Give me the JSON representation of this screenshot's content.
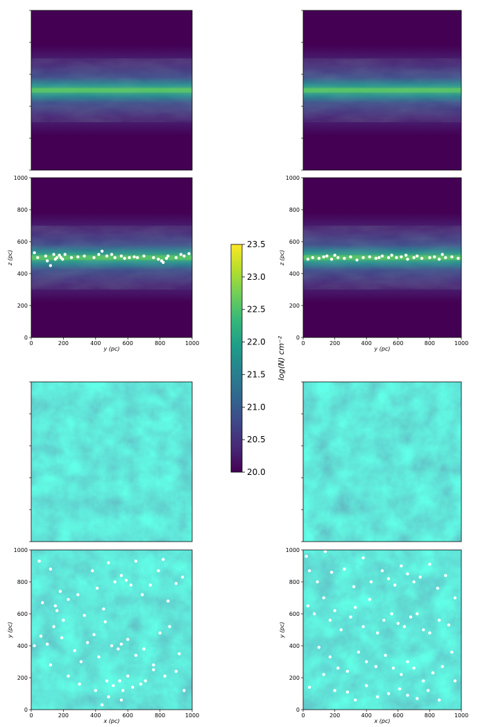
{
  "chart_data": [
    {
      "id": "p1",
      "type": "heatmap",
      "view": "edge-on",
      "xlabel": "",
      "ylabel": "",
      "xlim": [
        0,
        1000
      ],
      "ylim": [
        0,
        1000
      ],
      "xticks": [],
      "yticks": [],
      "points": []
    },
    {
      "id": "p2",
      "type": "heatmap",
      "view": "edge-on",
      "xlabel": "",
      "ylabel": "",
      "xlim": [
        0,
        1000
      ],
      "ylim": [
        0,
        1000
      ],
      "xticks": [],
      "yticks": [],
      "points": []
    },
    {
      "id": "p3",
      "type": "heatmap",
      "view": "edge-on",
      "xlabel": "y (pc)",
      "ylabel": "z (pc)",
      "xlim": [
        0,
        1000
      ],
      "ylim": [
        0,
        1000
      ],
      "xticks": [
        "0",
        "200",
        "400",
        "600",
        "800",
        "1000"
      ],
      "yticks": [
        "0",
        "200",
        "400",
        "600",
        "800",
        "1000"
      ],
      "points": [
        [
          20,
          530
        ],
        [
          40,
          500
        ],
        [
          90,
          510
        ],
        [
          100,
          480
        ],
        [
          120,
          450
        ],
        [
          140,
          520
        ],
        [
          150,
          490
        ],
        [
          160,
          500
        ],
        [
          175,
          515
        ],
        [
          185,
          500
        ],
        [
          195,
          490
        ],
        [
          210,
          520
        ],
        [
          250,
          500
        ],
        [
          290,
          505
        ],
        [
          330,
          510
        ],
        [
          390,
          500
        ],
        [
          420,
          520
        ],
        [
          440,
          540
        ],
        [
          470,
          510
        ],
        [
          500,
          520
        ],
        [
          520,
          500
        ],
        [
          560,
          510
        ],
        [
          580,
          495
        ],
        [
          610,
          500
        ],
        [
          640,
          505
        ],
        [
          660,
          500
        ],
        [
          700,
          510
        ],
        [
          760,
          500
        ],
        [
          790,
          490
        ],
        [
          810,
          480
        ],
        [
          820,
          470
        ],
        [
          840,
          495
        ],
        [
          850,
          510
        ],
        [
          900,
          500
        ],
        [
          930,
          520
        ],
        [
          950,
          510
        ],
        [
          980,
          525
        ]
      ]
    },
    {
      "id": "p4",
      "type": "heatmap",
      "view": "edge-on",
      "xlabel": "y (pc)",
      "ylabel": "z (pc)",
      "xlim": [
        0,
        1000
      ],
      "ylim": [
        0,
        1000
      ],
      "xticks": [
        "0",
        "200",
        "400",
        "600",
        "800",
        "1000"
      ],
      "yticks": [
        "0",
        "200",
        "400",
        "600",
        "800",
        "1000"
      ],
      "points": [
        [
          30,
          490
        ],
        [
          60,
          500
        ],
        [
          100,
          495
        ],
        [
          130,
          505
        ],
        [
          150,
          510
        ],
        [
          180,
          490
        ],
        [
          220,
          500
        ],
        [
          260,
          495
        ],
        [
          300,
          505
        ],
        [
          340,
          485
        ],
        [
          380,
          500
        ],
        [
          420,
          505
        ],
        [
          460,
          495
        ],
        [
          500,
          510
        ],
        [
          540,
          500
        ],
        [
          560,
          515
        ],
        [
          590,
          500
        ],
        [
          620,
          505
        ],
        [
          660,
          490
        ],
        [
          700,
          500
        ],
        [
          720,
          510
        ],
        [
          750,
          495
        ],
        [
          800,
          500
        ],
        [
          830,
          505
        ],
        [
          860,
          490
        ],
        [
          900,
          500
        ],
        [
          940,
          505
        ],
        [
          980,
          495
        ],
        [
          200,
          515
        ],
        [
          480,
          500
        ],
        [
          650,
          515
        ],
        [
          880,
          520
        ]
      ]
    },
    {
      "id": "p5",
      "type": "heatmap",
      "view": "face-on",
      "xlabel": "",
      "ylabel": "",
      "xlim": [
        0,
        1000
      ],
      "ylim": [
        0,
        1000
      ],
      "xticks": [],
      "yticks": [],
      "points": []
    },
    {
      "id": "p6",
      "type": "heatmap",
      "view": "face-on",
      "xlabel": "",
      "ylabel": "",
      "xlim": [
        0,
        1000
      ],
      "ylim": [
        0,
        1000
      ],
      "xticks": [],
      "yticks": [],
      "points": []
    },
    {
      "id": "p7",
      "type": "heatmap",
      "view": "face-on",
      "xlabel": "x (pc)",
      "ylabel": "y (pc)",
      "xlim": [
        0,
        1000
      ],
      "ylim": [
        0,
        1000
      ],
      "xticks": [
        "0",
        "200",
        "400",
        "600",
        "800",
        "1000"
      ],
      "yticks": [
        "0",
        "200",
        "400",
        "600",
        "800",
        "1000"
      ],
      "points": [
        [
          50,
          930
        ],
        [
          70,
          670
        ],
        [
          120,
          880
        ],
        [
          150,
          650
        ],
        [
          160,
          620
        ],
        [
          180,
          740
        ],
        [
          200,
          560
        ],
        [
          230,
          690
        ],
        [
          290,
          720
        ],
        [
          330,
          590
        ],
        [
          380,
          870
        ],
        [
          410,
          760
        ],
        [
          450,
          630
        ],
        [
          480,
          920
        ],
        [
          520,
          800
        ],
        [
          560,
          840
        ],
        [
          590,
          810
        ],
        [
          620,
          780
        ],
        [
          650,
          930
        ],
        [
          690,
          720
        ],
        [
          740,
          780
        ],
        [
          790,
          870
        ],
        [
          820,
          940
        ],
        [
          850,
          680
        ],
        [
          900,
          790
        ],
        [
          940,
          830
        ],
        [
          60,
          460
        ],
        [
          100,
          410
        ],
        [
          140,
          520
        ],
        [
          190,
          450
        ],
        [
          270,
          370
        ],
        [
          310,
          300
        ],
        [
          350,
          420
        ],
        [
          390,
          470
        ],
        [
          420,
          330
        ],
        [
          460,
          550
        ],
        [
          500,
          400
        ],
        [
          540,
          380
        ],
        [
          560,
          410
        ],
        [
          600,
          440
        ],
        [
          650,
          340
        ],
        [
          700,
          380
        ],
        [
          760,
          280
        ],
        [
          800,
          480
        ],
        [
          860,
          520
        ],
        [
          920,
          350
        ],
        [
          20,
          400
        ],
        [
          120,
          280
        ],
        [
          230,
          210
        ],
        [
          300,
          160
        ],
        [
          400,
          120
        ],
        [
          470,
          180
        ],
        [
          510,
          150
        ],
        [
          550,
          180
        ],
        [
          570,
          120
        ],
        [
          600,
          210
        ],
        [
          630,
          140
        ],
        [
          680,
          160
        ],
        [
          710,
          180
        ],
        [
          760,
          250
        ],
        [
          830,
          210
        ],
        [
          900,
          240
        ],
        [
          950,
          120
        ],
        [
          440,
          30
        ],
        [
          480,
          80
        ],
        [
          560,
          60
        ]
      ]
    },
    {
      "id": "p8",
      "type": "heatmap",
      "view": "face-on",
      "xlabel": "x (pc)",
      "ylabel": "y (pc)",
      "xlim": [
        0,
        1000
      ],
      "ylim": [
        0,
        1000
      ],
      "xticks": [
        "0",
        "200",
        "400",
        "600",
        "800",
        "1000"
      ],
      "yticks": [
        "0",
        "200",
        "400",
        "600",
        "800",
        "1000"
      ],
      "points": [
        [
          20,
          960
        ],
        [
          40,
          870
        ],
        [
          90,
          800
        ],
        [
          140,
          990
        ],
        [
          180,
          860
        ],
        [
          260,
          880
        ],
        [
          320,
          770
        ],
        [
          380,
          950
        ],
        [
          430,
          800
        ],
        [
          500,
          870
        ],
        [
          540,
          820
        ],
        [
          580,
          780
        ],
        [
          620,
          900
        ],
        [
          660,
          850
        ],
        [
          700,
          800
        ],
        [
          740,
          830
        ],
        [
          800,
          910
        ],
        [
          850,
          760
        ],
        [
          900,
          840
        ],
        [
          960,
          700
        ],
        [
          30,
          650
        ],
        [
          70,
          600
        ],
        [
          130,
          700
        ],
        [
          170,
          560
        ],
        [
          200,
          620
        ],
        [
          240,
          500
        ],
        [
          300,
          580
        ],
        [
          330,
          640
        ],
        [
          380,
          520
        ],
        [
          420,
          690
        ],
        [
          470,
          480
        ],
        [
          510,
          560
        ],
        [
          560,
          600
        ],
        [
          600,
          540
        ],
        [
          640,
          520
        ],
        [
          680,
          580
        ],
        [
          720,
          600
        ],
        [
          760,
          500
        ],
        [
          800,
          480
        ],
        [
          860,
          560
        ],
        [
          920,
          530
        ],
        [
          100,
          390
        ],
        [
          170,
          330
        ],
        [
          220,
          260
        ],
        [
          280,
          240
        ],
        [
          350,
          360
        ],
        [
          400,
          300
        ],
        [
          460,
          270
        ],
        [
          520,
          340
        ],
        [
          570,
          260
        ],
        [
          620,
          220
        ],
        [
          660,
          300
        ],
        [
          700,
          260
        ],
        [
          760,
          180
        ],
        [
          820,
          230
        ],
        [
          880,
          270
        ],
        [
          940,
          360
        ],
        [
          40,
          140
        ],
        [
          130,
          220
        ],
        [
          200,
          120
        ],
        [
          280,
          110
        ],
        [
          330,
          60
        ],
        [
          400,
          150
        ],
        [
          470,
          80
        ],
        [
          540,
          100
        ],
        [
          610,
          130
        ],
        [
          660,
          90
        ],
        [
          720,
          70
        ],
        [
          790,
          120
        ],
        [
          860,
          60
        ],
        [
          960,
          180
        ]
      ]
    }
  ],
  "colorbar": {
    "label": "log(N) cm⁻²",
    "min": 20.0,
    "max": 23.5,
    "ticks": [
      "20.0",
      "20.5",
      "21.0",
      "21.5",
      "22.0",
      "22.5",
      "23.0",
      "23.5"
    ],
    "colormap": [
      "#440154",
      "#482878",
      "#3e4989",
      "#31688e",
      "#26828e",
      "#1f9e89",
      "#35b779",
      "#6ece58",
      "#b5de2b",
      "#fde725"
    ]
  },
  "colors": {
    "background": "#440154",
    "marker": "#ffffff"
  }
}
